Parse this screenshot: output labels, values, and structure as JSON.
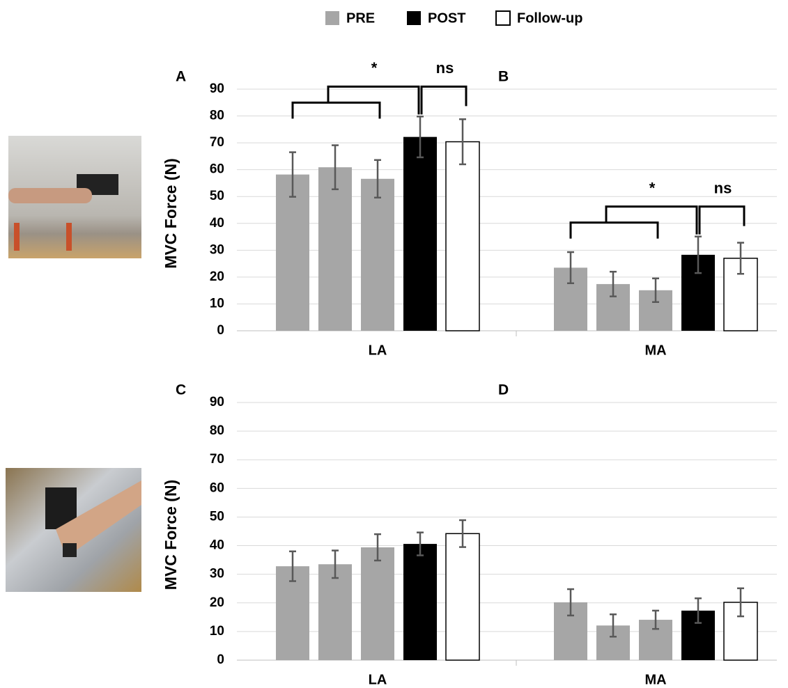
{
  "legend": [
    {
      "name": "PRE",
      "color": "#a6a6a6"
    },
    {
      "name": "POST",
      "color": "#000000"
    },
    {
      "name": "Follow-up",
      "color": "#ffffff"
    }
  ],
  "chart_data": [
    {
      "type": "bar",
      "panel_labels": [
        "A",
        "B"
      ],
      "ylabel": "MVC  Force (N)",
      "categories": [
        "LA",
        "MA"
      ],
      "ylim": [
        0,
        90
      ],
      "yticks": [
        0,
        10,
        20,
        30,
        40,
        50,
        60,
        70,
        80,
        90
      ],
      "grid": true,
      "series": [
        {
          "name": "PRE",
          "values": [
            [
              58.2,
              60.9,
              56.6
            ],
            [
              23.5,
              17.4,
              15.1
            ]
          ],
          "errors": [
            [
              8.3,
              8.2,
              7
            ],
            [
              5.8,
              4.6,
              4.4
            ]
          ]
        },
        {
          "name": "POST",
          "values": [
            72.2,
            28.3
          ],
          "errors": [
            7.6,
            6.8
          ]
        },
        {
          "name": "Follow-up",
          "values": [
            70.4,
            27
          ],
          "errors": [
            8.4,
            5.8
          ]
        }
      ],
      "significance": [
        [
          "*",
          "ns"
        ],
        [
          "*",
          "ns"
        ]
      ]
    },
    {
      "type": "bar",
      "panel_labels": [
        "C",
        "D"
      ],
      "ylabel": "MVC  Force (N)",
      "categories": [
        "LA",
        "MA"
      ],
      "ylim": [
        0,
        90
      ],
      "yticks": [
        0,
        10,
        20,
        30,
        40,
        50,
        60,
        70,
        80,
        90
      ],
      "grid": true,
      "series": [
        {
          "name": "PRE",
          "values": [
            [
              32.8,
              33.5,
              39.4
            ],
            [
              20.2,
              12.1,
              14.1
            ]
          ],
          "errors": [
            [
              5.2,
              4.8,
              4.6
            ],
            [
              4.6,
              3.9,
              3.2
            ]
          ]
        },
        {
          "name": "POST",
          "values": [
            40.6,
            17.3
          ],
          "errors": [
            4,
            4.3
          ]
        },
        {
          "name": "Follow-up",
          "values": [
            44.2,
            20.2
          ],
          "errors": [
            4.7,
            4.9
          ]
        }
      ]
    }
  ]
}
